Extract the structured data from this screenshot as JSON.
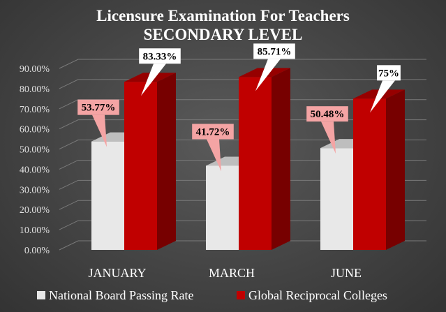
{
  "chart_data": {
    "type": "bar",
    "title": "Licensure Examination For Teachers",
    "subtitle": "SECONDARY LEVEL",
    "categories": [
      "JANUARY",
      "MARCH",
      "JUNE"
    ],
    "series": [
      {
        "name": "National Board Passing Rate",
        "values": [
          53.77,
          41.72,
          50.48
        ],
        "labels": [
          "53.77%",
          "41.72%",
          "50.48%"
        ],
        "color": "#e8e8e8"
      },
      {
        "name": "Global Reciprocal Colleges",
        "values": [
          83.33,
          85.71,
          75
        ],
        "labels": [
          "83.33%",
          "85.71%",
          "75%"
        ],
        "color": "#c00000"
      }
    ],
    "ylim": [
      0,
      90
    ],
    "yticks": [
      "0.00%",
      "10.00%",
      "20.00%",
      "30.00%",
      "40.00%",
      "50.00%",
      "60.00%",
      "70.00%",
      "80.00%",
      "90.00%"
    ],
    "grid": true,
    "legend": "bottom",
    "xlabel": "",
    "ylabel": ""
  }
}
